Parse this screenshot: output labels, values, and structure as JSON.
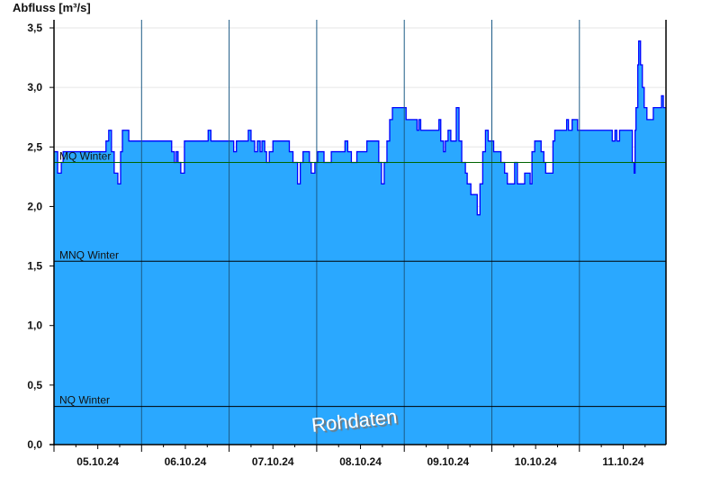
{
  "chart_data": {
    "type": "area",
    "title": "",
    "ylabel": "Abfluss [m³/s]",
    "xlabel": "",
    "ylim": [
      0,
      3.5
    ],
    "yticks": [
      "0,0",
      "0,5",
      "1,0",
      "1,5",
      "2,0",
      "2,5",
      "3,0",
      "3,5"
    ],
    "xticks": [
      "05.10.24",
      "06.10.24",
      "07.10.24",
      "08.10.24",
      "09.10.24",
      "10.10.24",
      "11.10.24"
    ],
    "grid": true,
    "colors": {
      "fill": "#2aa8ff",
      "line": "#0000ff",
      "dayline": "#1c5a86",
      "mq_line": "#006400",
      "ref_line": "#000000"
    },
    "reference_lines": [
      {
        "name": "MQ Winter",
        "value": 2.37
      },
      {
        "name": "MNQ Winter",
        "value": 1.54
      },
      {
        "name": "NQ Winter",
        "value": 0.32
      }
    ],
    "watermark": "Rohdaten",
    "series": [
      {
        "points": [
          [
            "05.10.24 00:00",
            2.46
          ],
          [
            "05.10.24 01:00",
            2.28
          ],
          [
            "05.10.24 02:00",
            2.37
          ],
          [
            "05.10.24 02:30",
            2.46
          ],
          [
            "05.10.24 14:15",
            2.55
          ],
          [
            "05.10.24 15:00",
            2.64
          ],
          [
            "05.10.24 15:45",
            2.46
          ],
          [
            "05.10.24 16:30",
            2.28
          ],
          [
            "05.10.24 17:30",
            2.19
          ],
          [
            "05.10.24 18:15",
            2.46
          ],
          [
            "05.10.24 18:45",
            2.64
          ],
          [
            "05.10.24 20:30",
            2.55
          ],
          [
            "06.10.24 08:15",
            2.46
          ],
          [
            "06.10.24 09:00",
            2.37
          ],
          [
            "06.10.24 09:30",
            2.46
          ],
          [
            "06.10.24 10:00",
            2.37
          ],
          [
            "06.10.24 10:45",
            2.28
          ],
          [
            "06.10.24 11:45",
            2.55
          ],
          [
            "06.10.24 18:15",
            2.64
          ],
          [
            "06.10.24 19:00",
            2.55
          ],
          [
            "07.10.24 01:15",
            2.46
          ],
          [
            "07.10.24 02:00",
            2.55
          ],
          [
            "07.10.24 05:15",
            2.64
          ],
          [
            "07.10.24 06:00",
            2.55
          ],
          [
            "07.10.24 07:00",
            2.46
          ],
          [
            "07.10.24 07:45",
            2.55
          ],
          [
            "07.10.24 08:30",
            2.46
          ],
          [
            "07.10.24 09:00",
            2.55
          ],
          [
            "07.10.24 09:45",
            2.46
          ],
          [
            "07.10.24 10:15",
            2.37
          ],
          [
            "07.10.24 11:00",
            2.46
          ],
          [
            "07.10.24 12:00",
            2.55
          ],
          [
            "07.10.24 16:30",
            2.46
          ],
          [
            "07.10.24 17:30",
            2.37
          ],
          [
            "07.10.24 18:45",
            2.19
          ],
          [
            "07.10.24 19:30",
            2.37
          ],
          [
            "07.10.24 20:15",
            2.46
          ],
          [
            "07.10.24 22:00",
            2.37
          ],
          [
            "07.10.24 22:30",
            2.28
          ],
          [
            "07.10.24 23:30",
            2.37
          ],
          [
            "08.10.24 00:15",
            2.46
          ],
          [
            "08.10.24 02:00",
            2.37
          ],
          [
            "08.10.24 04:00",
            2.46
          ],
          [
            "08.10.24 07:45",
            2.55
          ],
          [
            "08.10.24 08:30",
            2.46
          ],
          [
            "08.10.24 09:30",
            2.37
          ],
          [
            "08.10.24 11:00",
            2.46
          ],
          [
            "08.10.24 13:45",
            2.55
          ],
          [
            "08.10.24 17:00",
            2.37
          ],
          [
            "08.10.24 17:45",
            2.19
          ],
          [
            "08.10.24 18:30",
            2.37
          ],
          [
            "08.10.24 19:15",
            2.55
          ],
          [
            "08.10.24 20:00",
            2.73
          ],
          [
            "08.10.24 20:45",
            2.83
          ],
          [
            "09.10.24 00:30",
            2.73
          ],
          [
            "09.10.24 03:30",
            2.64
          ],
          [
            "09.10.24 04:00",
            2.73
          ],
          [
            "09.10.24 04:30",
            2.64
          ],
          [
            "09.10.24 09:30",
            2.73
          ],
          [
            "09.10.24 10:00",
            2.55
          ],
          [
            "09.10.24 10:45",
            2.46
          ],
          [
            "09.10.24 11:15",
            2.55
          ],
          [
            "09.10.24 12:00",
            2.64
          ],
          [
            "09.10.24 12:45",
            2.55
          ],
          [
            "09.10.24 14:15",
            2.83
          ],
          [
            "09.10.24 15:00",
            2.55
          ],
          [
            "09.10.24 15:45",
            2.37
          ],
          [
            "09.10.24 16:45",
            2.28
          ],
          [
            "09.10.24 17:15",
            2.19
          ],
          [
            "09.10.24 18:15",
            2.1
          ],
          [
            "09.10.24 20:00",
            1.93
          ],
          [
            "09.10.24 20:45",
            2.19
          ],
          [
            "09.10.24 21:30",
            2.46
          ],
          [
            "09.10.24 22:15",
            2.64
          ],
          [
            "09.10.24 23:00",
            2.55
          ],
          [
            "10.10.24 00:30",
            2.46
          ],
          [
            "10.10.24 02:30",
            2.37
          ],
          [
            "10.10.24 03:30",
            2.28
          ],
          [
            "10.10.24 04:15",
            2.19
          ],
          [
            "10.10.24 06:15",
            2.37
          ],
          [
            "10.10.24 07:00",
            2.19
          ],
          [
            "10.10.24 09:00",
            2.28
          ],
          [
            "10.10.24 10:30",
            2.19
          ],
          [
            "10.10.24 11:00",
            2.46
          ],
          [
            "10.10.24 11:45",
            2.55
          ],
          [
            "10.10.24 13:30",
            2.46
          ],
          [
            "10.10.24 14:15",
            2.37
          ],
          [
            "10.10.24 14:45",
            2.28
          ],
          [
            "10.10.24 16:45",
            2.55
          ],
          [
            "10.10.24 17:15",
            2.64
          ],
          [
            "10.10.24 20:30",
            2.73
          ],
          [
            "10.10.24 21:00",
            2.64
          ],
          [
            "10.10.24 22:00",
            2.73
          ],
          [
            "10.10.24 23:30",
            2.64
          ],
          [
            "11.10.24 09:00",
            2.55
          ],
          [
            "11.10.24 09:45",
            2.64
          ],
          [
            "11.10.24 10:15",
            2.55
          ],
          [
            "11.10.24 11:00",
            2.64
          ],
          [
            "11.10.24 14:30",
            2.37
          ],
          [
            "11.10.24 15:00",
            2.28
          ],
          [
            "11.10.24 15:15",
            2.64
          ],
          [
            "11.10.24 15:30",
            2.83
          ],
          [
            "11.10.24 16:00",
            3.19
          ],
          [
            "11.10.24 16:15",
            3.39
          ],
          [
            "11.10.24 16:45",
            3.19
          ],
          [
            "11.10.24 17:15",
            3.0
          ],
          [
            "11.10.24 17:45",
            2.83
          ],
          [
            "11.10.24 18:30",
            2.73
          ],
          [
            "11.10.24 20:15",
            2.83
          ],
          [
            "11.10.24 22:30",
            2.93
          ],
          [
            "11.10.24 23:00",
            2.83
          ],
          [
            "11.10.24 23:45",
            2.83
          ]
        ]
      }
    ]
  }
}
